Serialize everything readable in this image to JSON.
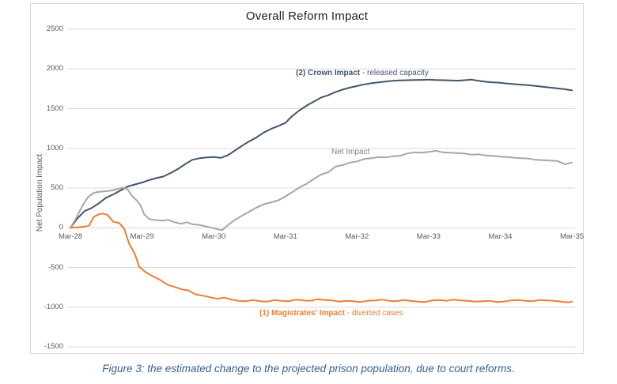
{
  "caption": "Figure 3: the estimated change to the projected prison population, due to court reforms.",
  "chart_data": {
    "type": "line",
    "title": "Overall Reform Impact",
    "ylabel": "Net Population Impact",
    "xlabel": "",
    "ylim": [
      -1500,
      2500
    ],
    "y_ticks": [
      2500,
      2000,
      1500,
      1000,
      500,
      0,
      -500,
      -1000,
      -1500
    ],
    "x_ticks": [
      "Mar-28",
      "Mar-29",
      "Mar-30",
      "Mar-31",
      "Mar-32",
      "Mar-33",
      "Mar-34",
      "Mar-35"
    ],
    "x_unit": "years after Mar-28",
    "grid": true,
    "legend_position": "inline-labels",
    "series": [
      {
        "name": "(2) Crown Impact - released capacity",
        "label_strong": "(2) Crown Impact",
        "label_normal": " - released capacity",
        "color": "#44546a",
        "points": [
          [
            0,
            0
          ],
          [
            0.1,
            120
          ],
          [
            0.2,
            210
          ],
          [
            0.3,
            250
          ],
          [
            0.4,
            310
          ],
          [
            0.5,
            380
          ],
          [
            0.6,
            420
          ],
          [
            0.7,
            470
          ],
          [
            0.8,
            520
          ],
          [
            0.9,
            545
          ],
          [
            1.0,
            570
          ],
          [
            1.1,
            600
          ],
          [
            1.2,
            625
          ],
          [
            1.3,
            645
          ],
          [
            1.4,
            690
          ],
          [
            1.5,
            740
          ],
          [
            1.6,
            800
          ],
          [
            1.7,
            855
          ],
          [
            1.8,
            875
          ],
          [
            1.9,
            885
          ],
          [
            2.0,
            890
          ],
          [
            2.1,
            880
          ],
          [
            2.2,
            915
          ],
          [
            2.3,
            975
          ],
          [
            2.4,
            1035
          ],
          [
            2.5,
            1090
          ],
          [
            2.6,
            1140
          ],
          [
            2.7,
            1200
          ],
          [
            2.8,
            1245
          ],
          [
            2.9,
            1280
          ],
          [
            3.0,
            1320
          ],
          [
            3.1,
            1410
          ],
          [
            3.2,
            1480
          ],
          [
            3.3,
            1540
          ],
          [
            3.4,
            1590
          ],
          [
            3.5,
            1640
          ],
          [
            3.6,
            1670
          ],
          [
            3.7,
            1710
          ],
          [
            3.8,
            1740
          ],
          [
            3.9,
            1765
          ],
          [
            4.0,
            1785
          ],
          [
            4.1,
            1805
          ],
          [
            4.2,
            1820
          ],
          [
            4.3,
            1830
          ],
          [
            4.4,
            1840
          ],
          [
            4.5,
            1850
          ],
          [
            4.6,
            1855
          ],
          [
            4.7,
            1858
          ],
          [
            4.8,
            1860
          ],
          [
            4.9,
            1862
          ],
          [
            5.0,
            1865
          ],
          [
            5.1,
            1860
          ],
          [
            5.2,
            1858
          ],
          [
            5.3,
            1855
          ],
          [
            5.4,
            1852
          ],
          [
            5.5,
            1858
          ],
          [
            5.6,
            1865
          ],
          [
            5.7,
            1850
          ],
          [
            5.8,
            1838
          ],
          [
            5.9,
            1830
          ],
          [
            6.0,
            1825
          ],
          [
            6.1,
            1815
          ],
          [
            6.2,
            1808
          ],
          [
            6.3,
            1800
          ],
          [
            6.4,
            1795
          ],
          [
            6.5,
            1785
          ],
          [
            6.6,
            1775
          ],
          [
            6.7,
            1765
          ],
          [
            6.8,
            1755
          ],
          [
            6.9,
            1745
          ],
          [
            7.0,
            1730
          ]
        ]
      },
      {
        "name": "Net Impact",
        "label_strong": "",
        "label_normal": "Net Impact",
        "color": "#a6a6a6",
        "points": [
          [
            0,
            0
          ],
          [
            0.08,
            120
          ],
          [
            0.17,
            280
          ],
          [
            0.25,
            390
          ],
          [
            0.33,
            440
          ],
          [
            0.42,
            455
          ],
          [
            0.5,
            460
          ],
          [
            0.58,
            470
          ],
          [
            0.67,
            490
          ],
          [
            0.74,
            505
          ],
          [
            0.8,
            480
          ],
          [
            0.86,
            400
          ],
          [
            0.92,
            350
          ],
          [
            0.98,
            280
          ],
          [
            1.03,
            170
          ],
          [
            1.1,
            110
          ],
          [
            1.2,
            95
          ],
          [
            1.3,
            90
          ],
          [
            1.36,
            100
          ],
          [
            1.45,
            70
          ],
          [
            1.55,
            50
          ],
          [
            1.62,
            70
          ],
          [
            1.7,
            45
          ],
          [
            1.8,
            35
          ],
          [
            1.9,
            15
          ],
          [
            2.0,
            -5
          ],
          [
            2.06,
            -20
          ],
          [
            2.12,
            -30
          ],
          [
            2.2,
            35
          ],
          [
            2.3,
            100
          ],
          [
            2.4,
            155
          ],
          [
            2.5,
            205
          ],
          [
            2.6,
            255
          ],
          [
            2.7,
            295
          ],
          [
            2.8,
            320
          ],
          [
            2.9,
            345
          ],
          [
            3.0,
            395
          ],
          [
            3.1,
            450
          ],
          [
            3.2,
            510
          ],
          [
            3.3,
            555
          ],
          [
            3.4,
            615
          ],
          [
            3.5,
            670
          ],
          [
            3.6,
            700
          ],
          [
            3.7,
            770
          ],
          [
            3.8,
            790
          ],
          [
            3.9,
            820
          ],
          [
            4.0,
            835
          ],
          [
            4.1,
            865
          ],
          [
            4.2,
            875
          ],
          [
            4.3,
            890
          ],
          [
            4.4,
            885
          ],
          [
            4.5,
            900
          ],
          [
            4.6,
            905
          ],
          [
            4.7,
            935
          ],
          [
            4.8,
            950
          ],
          [
            4.9,
            945
          ],
          [
            5.0,
            955
          ],
          [
            5.1,
            970
          ],
          [
            5.2,
            950
          ],
          [
            5.3,
            945
          ],
          [
            5.4,
            940
          ],
          [
            5.5,
            935
          ],
          [
            5.6,
            920
          ],
          [
            5.7,
            925
          ],
          [
            5.8,
            910
          ],
          [
            5.9,
            905
          ],
          [
            6.0,
            895
          ],
          [
            6.1,
            890
          ],
          [
            6.2,
            880
          ],
          [
            6.3,
            875
          ],
          [
            6.4,
            870
          ],
          [
            6.5,
            855
          ],
          [
            6.6,
            850
          ],
          [
            6.7,
            845
          ],
          [
            6.8,
            840
          ],
          [
            6.9,
            800
          ],
          [
            7.0,
            820
          ]
        ]
      },
      {
        "name": "(1) Magistrates' Impact - diverted cases",
        "label_strong": "(1) Magistrates' Impact",
        "label_normal": " - diverted cases",
        "color": "#ed7d31",
        "points": [
          [
            0,
            0
          ],
          [
            0.1,
            5
          ],
          [
            0.2,
            15
          ],
          [
            0.26,
            25
          ],
          [
            0.33,
            140
          ],
          [
            0.4,
            170
          ],
          [
            0.45,
            180
          ],
          [
            0.52,
            160
          ],
          [
            0.6,
            75
          ],
          [
            0.68,
            60
          ],
          [
            0.75,
            -10
          ],
          [
            0.82,
            -200
          ],
          [
            0.9,
            -330
          ],
          [
            0.96,
            -490
          ],
          [
            1.05,
            -560
          ],
          [
            1.15,
            -610
          ],
          [
            1.25,
            -655
          ],
          [
            1.35,
            -715
          ],
          [
            1.45,
            -745
          ],
          [
            1.55,
            -775
          ],
          [
            1.65,
            -790
          ],
          [
            1.75,
            -840
          ],
          [
            1.85,
            -855
          ],
          [
            1.95,
            -875
          ],
          [
            2.05,
            -895
          ],
          [
            2.15,
            -880
          ],
          [
            2.25,
            -905
          ],
          [
            2.35,
            -920
          ],
          [
            2.45,
            -925
          ],
          [
            2.55,
            -910
          ],
          [
            2.65,
            -925
          ],
          [
            2.75,
            -930
          ],
          [
            2.85,
            -910
          ],
          [
            2.95,
            -920
          ],
          [
            3.05,
            -925
          ],
          [
            3.15,
            -905
          ],
          [
            3.25,
            -915
          ],
          [
            3.35,
            -920
          ],
          [
            3.45,
            -900
          ],
          [
            3.55,
            -910
          ],
          [
            3.65,
            -915
          ],
          [
            3.75,
            -930
          ],
          [
            3.85,
            -920
          ],
          [
            3.95,
            -925
          ],
          [
            4.05,
            -935
          ],
          [
            4.15,
            -920
          ],
          [
            4.25,
            -915
          ],
          [
            4.35,
            -905
          ],
          [
            4.45,
            -920
          ],
          [
            4.55,
            -925
          ],
          [
            4.65,
            -910
          ],
          [
            4.75,
            -920
          ],
          [
            4.85,
            -930
          ],
          [
            4.95,
            -935
          ],
          [
            5.05,
            -915
          ],
          [
            5.15,
            -910
          ],
          [
            5.25,
            -920
          ],
          [
            5.35,
            -905
          ],
          [
            5.45,
            -915
          ],
          [
            5.55,
            -920
          ],
          [
            5.65,
            -930
          ],
          [
            5.75,
            -925
          ],
          [
            5.85,
            -920
          ],
          [
            5.95,
            -935
          ],
          [
            6.05,
            -930
          ],
          [
            6.15,
            -915
          ],
          [
            6.25,
            -910
          ],
          [
            6.35,
            -920
          ],
          [
            6.45,
            -925
          ],
          [
            6.55,
            -910
          ],
          [
            6.65,
            -915
          ],
          [
            6.75,
            -920
          ],
          [
            6.85,
            -930
          ],
          [
            6.95,
            -940
          ],
          [
            7.0,
            -930
          ]
        ]
      }
    ]
  }
}
